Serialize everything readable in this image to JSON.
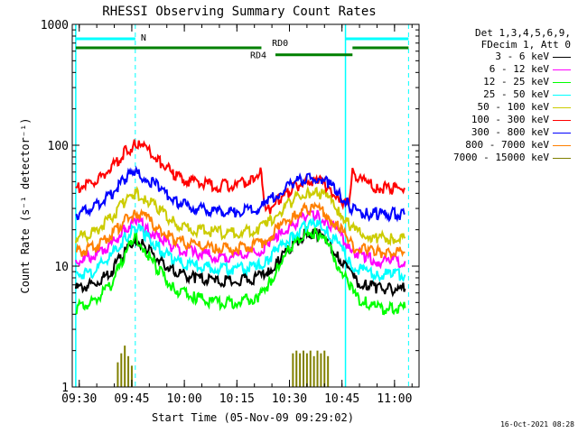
{
  "chart_data": {
    "type": "line",
    "title": "RHESSI Observing Summary Count Rates",
    "xlabel": "Start Time (05-Nov-09 09:29:02)",
    "ylabel": "Count Rate (s⁻¹ detector⁻¹)",
    "yscale": "log",
    "ylim": [
      1,
      1000
    ],
    "xlim_minutes": [
      -1,
      98
    ],
    "x_tick_minutes": [
      1,
      16,
      31,
      46,
      61,
      76,
      91
    ],
    "x_tick_labels": [
      "09:30",
      "09:45",
      "10:00",
      "10:15",
      "10:30",
      "10:45",
      "11:00"
    ],
    "y_ticks": [
      1,
      10,
      100,
      1000
    ],
    "y_tick_labels": [
      "1",
      "10",
      "100",
      "1000"
    ],
    "grid": false,
    "legend_position": "right",
    "legend_header": [
      "Det 1,3,4,5,6,9,",
      "FDecim 1, Att 0"
    ],
    "series": [
      {
        "name": "3 - 6 keV",
        "color": "#000000",
        "x": [
          0,
          5,
          10,
          14,
          17,
          20,
          24,
          28,
          34,
          40,
          46,
          52,
          55,
          58,
          62,
          66,
          69,
          72,
          75,
          78,
          80,
          83,
          86,
          90,
          94
        ],
        "y": [
          6.5,
          7,
          9,
          13,
          17,
          14,
          11,
          9,
          8,
          7.5,
          7.5,
          8,
          9,
          11,
          15,
          19,
          18.5,
          16,
          12,
          9,
          7.5,
          7,
          6.5,
          6.5,
          6.5
        ]
      },
      {
        "name": "6 - 12 keV",
        "color": "#ff00ff",
        "x": [
          0,
          5,
          10,
          14,
          17,
          20,
          24,
          28,
          34,
          40,
          46,
          52,
          55,
          58,
          62,
          66,
          69,
          72,
          75,
          78,
          80,
          83,
          86,
          90,
          94
        ],
        "y": [
          11,
          12,
          15,
          20,
          24,
          21,
          17,
          14,
          13,
          12,
          12,
          13,
          15,
          18,
          22,
          26,
          26,
          23,
          19,
          15,
          13,
          12,
          11,
          11,
          11
        ]
      },
      {
        "name": "12 - 25 keV",
        "color": "#00ff00",
        "x": [
          0,
          5,
          10,
          14,
          17,
          20,
          24,
          28,
          34,
          40,
          46,
          52,
          55,
          58,
          62,
          66,
          69,
          72,
          75,
          78,
          80,
          83,
          86,
          90,
          94
        ],
        "y": [
          4.5,
          5,
          7,
          12,
          18,
          13,
          9,
          6.5,
          5.5,
          5,
          5,
          5.5,
          7,
          10,
          15,
          19,
          18.5,
          15,
          10,
          7,
          5.5,
          5,
          4.5,
          4.5,
          4.5
        ]
      },
      {
        "name": "25 - 50 keV",
        "color": "#00ffff",
        "x": [
          0,
          5,
          10,
          14,
          17,
          20,
          24,
          28,
          34,
          40,
          46,
          52,
          55,
          58,
          62,
          66,
          69,
          72,
          75,
          78,
          80,
          83,
          86,
          90,
          94
        ],
        "y": [
          8.5,
          9,
          12,
          17,
          21,
          18,
          14,
          11,
          10,
          9.5,
          9.5,
          10,
          11.5,
          14,
          18,
          22,
          22,
          19,
          15,
          11,
          9.5,
          9,
          8.5,
          8.5,
          8.5
        ]
      },
      {
        "name": "50 - 100 keV",
        "color": "#cccc00",
        "x": [
          0,
          5,
          10,
          14,
          17,
          20,
          24,
          28,
          34,
          40,
          46,
          52,
          55,
          58,
          62,
          66,
          69,
          72,
          75,
          78,
          80,
          83,
          86,
          90,
          94
        ],
        "y": [
          17,
          19,
          25,
          34,
          40,
          36,
          29,
          23,
          20,
          19,
          19,
          20,
          23,
          28,
          35,
          41,
          41,
          36,
          29,
          22,
          19,
          18,
          17,
          17,
          17
        ]
      },
      {
        "name": "100 - 300 keV",
        "color": "#ff0000",
        "x": [
          0,
          5,
          10,
          14,
          17,
          20,
          24,
          28,
          34,
          40,
          46,
          50,
          53,
          54,
          55,
          58,
          62,
          66,
          69,
          72,
          75,
          78,
          79,
          80,
          83,
          86,
          90,
          94
        ],
        "y": [
          44,
          49,
          64,
          87,
          101,
          92,
          73,
          57,
          49,
          46,
          47,
          52,
          60,
          29,
          29,
          35,
          44,
          51,
          51,
          45,
          38,
          30,
          62,
          56,
          48,
          45,
          44,
          44
        ]
      },
      {
        "name": "300 - 800 keV",
        "color": "#0000ff",
        "x": [
          0,
          5,
          10,
          14,
          17,
          20,
          24,
          28,
          34,
          40,
          46,
          52,
          55,
          58,
          62,
          66,
          69,
          72,
          75,
          78,
          80,
          83,
          86,
          90,
          94
        ],
        "y": [
          27,
          30,
          39,
          53,
          59,
          54,
          44,
          35,
          30,
          28,
          28,
          30,
          34,
          41,
          48,
          54,
          54,
          48,
          40,
          32,
          28,
          27,
          27,
          27,
          27
        ]
      },
      {
        "name": "800 - 7000 keV",
        "color": "#ff8000",
        "x": [
          0,
          5,
          10,
          14,
          17,
          20,
          24,
          28,
          34,
          40,
          46,
          52,
          55,
          58,
          62,
          66,
          69,
          72,
          75,
          78,
          80,
          83,
          86,
          90,
          94
        ],
        "y": [
          13,
          14,
          18,
          24,
          28,
          25,
          20,
          16.5,
          15,
          14,
          14,
          15,
          17,
          21,
          26,
          30,
          30,
          26,
          21,
          16,
          14,
          13.5,
          13,
          13,
          13
        ]
      },
      {
        "name": "7000 - 15000 keV",
        "color": "#808000",
        "x": [],
        "y": []
      }
    ],
    "spikes_7000_15000": {
      "x": [
        12,
        13,
        14,
        15,
        16,
        62,
        63,
        64,
        65,
        66,
        67,
        68,
        69,
        70,
        71,
        72
      ],
      "y": [
        1.6,
        1.9,
        2.2,
        1.8,
        1.5,
        1.9,
        2.0,
        1.9,
        2.0,
        1.9,
        2.0,
        1.8,
        2.0,
        1.9,
        2.0,
        1.8
      ]
    },
    "annotations": {
      "night_markers_minutes": [
        0,
        77
      ],
      "dashed_markers_minutes": [
        17,
        95
      ],
      "n_flag": {
        "label": "N",
        "ranges_minutes": [
          [
            0,
            17
          ],
          [
            77,
            95
          ]
        ],
        "level": 760
      },
      "rd0_flag": {
        "label": "RD0",
        "ranges_minutes": [
          [
            0,
            53
          ],
          [
            79,
            95
          ]
        ],
        "level": 640
      },
      "rd4_flag": {
        "label": "RD4",
        "ranges_minutes": [
          [
            57,
            79
          ]
        ],
        "level": 560
      }
    }
  },
  "footer": {
    "date": "16-Oct-2021 08:28"
  }
}
